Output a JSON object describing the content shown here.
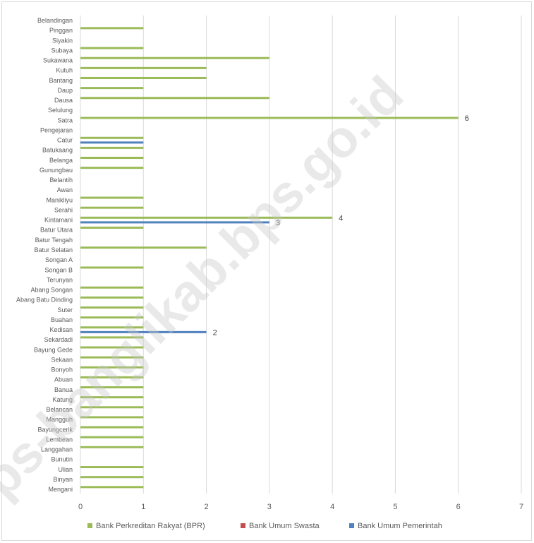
{
  "chart_data": {
    "type": "bar",
    "orientation": "horizontal",
    "categories": [
      "Belandingan",
      "Pinggan",
      "Siyakin",
      "Subaya",
      "Sukawana",
      "Kutuh",
      "Bantang",
      "Daup",
      "Dausa",
      "Selulung",
      "Satra",
      "Pengejaran",
      "Catur",
      "Batukaang",
      "Belanga",
      "Gunungbau",
      "Belantih",
      "Awan",
      "Manikliyu",
      "Serahi",
      "Kintamani",
      "Batur Utara",
      "Batur Tengah",
      "Batur Selatan",
      "Songan A",
      "Songan B",
      "Terunyan",
      "Abang Songan",
      "Abang Batu Dinding",
      "Suter",
      "Buahan",
      "Kedisan",
      "Sekardadi",
      "Bayung Gede",
      "Sekaan",
      "Bonyoh",
      "Abuan",
      "Banua",
      "Katung",
      "Belancan",
      "Mangguh",
      "Bayungcerik",
      "Lembean",
      "Langgahan",
      "Bunutin",
      "Ulian",
      "Binyan",
      "Mengani"
    ],
    "series": [
      {
        "name": "Bank Perkreditan Rakyat (BPR)",
        "color": "#9bbb59",
        "values": [
          0,
          1,
          0,
          1,
          3,
          2,
          2,
          1,
          3,
          0,
          6,
          0,
          1,
          1,
          1,
          1,
          0,
          0,
          1,
          1,
          4,
          1,
          0,
          2,
          0,
          1,
          0,
          1,
          1,
          1,
          1,
          1,
          1,
          1,
          1,
          1,
          1,
          1,
          1,
          1,
          1,
          1,
          1,
          1,
          0,
          1,
          1,
          1
        ]
      },
      {
        "name": "Bank Umum Swasta",
        "color": "#c0504d",
        "values": [
          0,
          0,
          0,
          0,
          0,
          0,
          0,
          0,
          0,
          0,
          0,
          0,
          0,
          0,
          0,
          0,
          0,
          0,
          0,
          0,
          0,
          0,
          0,
          0,
          0,
          0,
          0,
          0,
          0,
          0,
          0,
          0,
          0,
          0,
          0,
          0,
          0,
          0,
          0,
          0,
          0,
          0,
          0,
          0,
          0,
          0,
          0,
          0
        ]
      },
      {
        "name": "Bank Umum Pemerintah",
        "color": "#4f81bd",
        "values": [
          0,
          0,
          0,
          0,
          0,
          0,
          0,
          0,
          0,
          0,
          0,
          0,
          1,
          0,
          0,
          0,
          0,
          0,
          0,
          0,
          3,
          0,
          0,
          0,
          0,
          0,
          0,
          0,
          0,
          0,
          0,
          2,
          0,
          0,
          0,
          0,
          0,
          0,
          0,
          0,
          0,
          0,
          0,
          0,
          0,
          0,
          0,
          0
        ]
      }
    ],
    "xlim": [
      0,
      7
    ],
    "x_ticks": [
      "0",
      "1",
      "2",
      "3",
      "4",
      "5",
      "6",
      "7"
    ],
    "grid": true,
    "legend_position": "bottom",
    "data_labels": [
      {
        "category": "Satra",
        "series": "Bank Perkreditan Rakyat (BPR)",
        "text": "6"
      },
      {
        "category": "Kintamani",
        "series": "Bank Perkreditan Rakyat (BPR)",
        "text": "4"
      },
      {
        "category": "Kintamani",
        "series": "Bank Umum Pemerintah",
        "text": "3"
      },
      {
        "category": "Kedisan",
        "series": "Bank Umum Pemerintah",
        "text": "2"
      }
    ]
  },
  "watermark": "bps-banglikab.bps.go.id"
}
